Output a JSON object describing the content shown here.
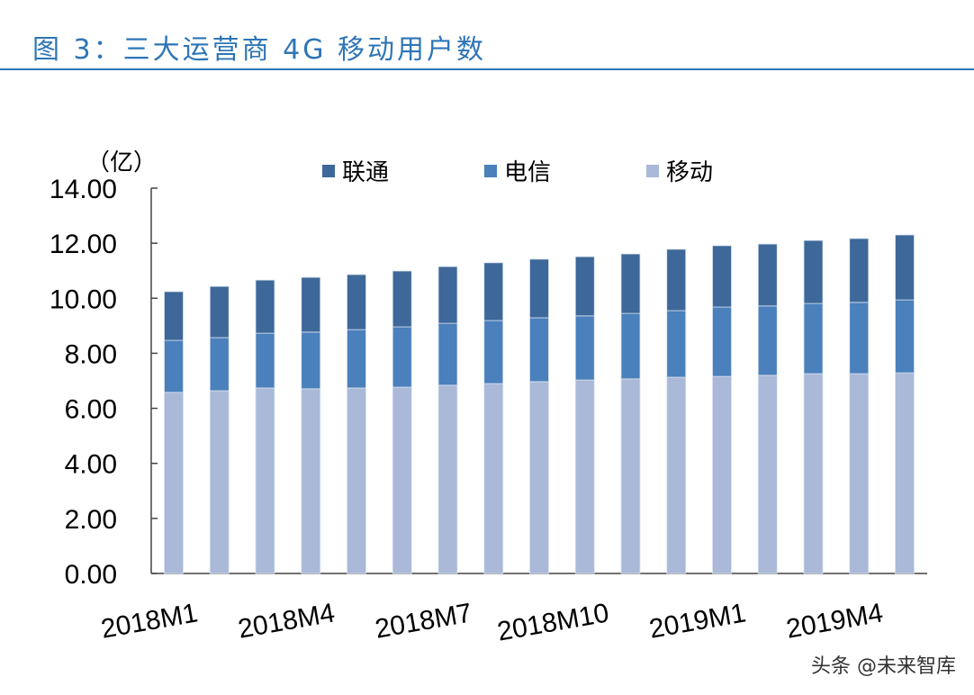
{
  "title": "图 3：三大运营商 4G 移动用户数",
  "watermark": "头条 @未来智库",
  "chart_data": {
    "type": "bar",
    "stacked": true,
    "title": "图 3：三大运营商 4G 移动用户数",
    "ylabel": "（亿）",
    "xlabel": "",
    "ylim": [
      0,
      14
    ],
    "yticks": [
      "0.00",
      "2.00",
      "4.00",
      "6.00",
      "8.00",
      "10.00",
      "12.00",
      "14.00"
    ],
    "grid": false,
    "legend_position": "top",
    "categories": [
      "2018M1",
      "2018M2",
      "2018M3",
      "2018M4",
      "2018M5",
      "2018M6",
      "2018M7",
      "2018M8",
      "2018M9",
      "2018M10",
      "2018M11",
      "2018M12",
      "2019M1",
      "2019M2",
      "2019M3",
      "2019M4",
      "2019M5"
    ],
    "xtick_labels": [
      "2018M1",
      "2018M4",
      "2018M7",
      "2018M10",
      "2019M1",
      "2019M4"
    ],
    "series": [
      {
        "name": "移动",
        "color": "#a9b9d7",
        "values": [
          6.58,
          6.64,
          6.74,
          6.71,
          6.74,
          6.77,
          6.84,
          6.9,
          6.97,
          7.03,
          7.07,
          7.13,
          7.16,
          7.2,
          7.26,
          7.26,
          7.29
        ]
      },
      {
        "name": "电信",
        "color": "#4a80bb",
        "values": [
          1.89,
          1.93,
          1.99,
          2.06,
          2.12,
          2.19,
          2.25,
          2.29,
          2.32,
          2.33,
          2.38,
          2.42,
          2.52,
          2.52,
          2.55,
          2.59,
          2.65
        ]
      },
      {
        "name": "联通",
        "color": "#3d6899",
        "values": [
          1.77,
          1.86,
          1.93,
          1.99,
          2.0,
          2.03,
          2.06,
          2.1,
          2.13,
          2.15,
          2.16,
          2.23,
          2.23,
          2.25,
          2.29,
          2.32,
          2.36
        ]
      }
    ],
    "legend_order": [
      "联通",
      "电信",
      "移动"
    ]
  }
}
